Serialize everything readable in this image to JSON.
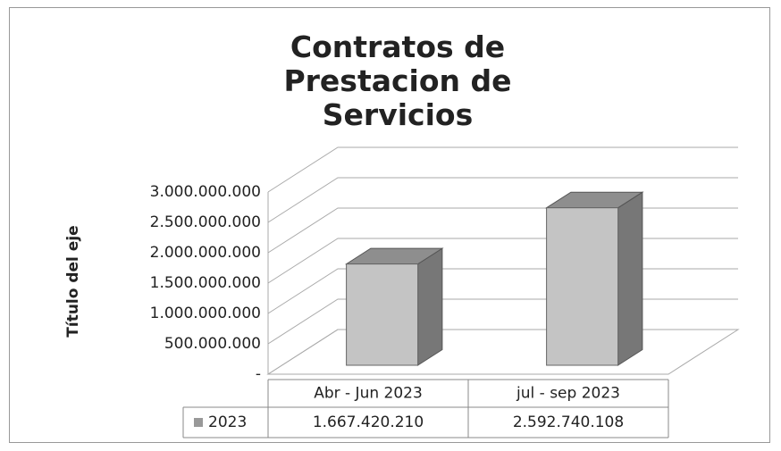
{
  "chart_data": {
    "type": "bar3d",
    "title": "Contratos de Prestacion de Servicios",
    "y_label": "Título del eje",
    "categories": [
      "Abr - Jun 2023",
      "jul - sep 2023"
    ],
    "series": [
      {
        "name": "2023",
        "color": "#c4c4c4",
        "values": [
          1667420210,
          2592740108
        ],
        "value_labels": [
          "1.667.420.210",
          "2.592.740.108"
        ]
      }
    ],
    "ylim": [
      0,
      3000000000
    ],
    "yticks": [
      {
        "value": 0,
        "label": "-"
      },
      {
        "value": 500000000,
        "label": "500.000.000"
      },
      {
        "value": 1000000000,
        "label": "1.000.000.000"
      },
      {
        "value": 1500000000,
        "label": "1.500.000.000"
      },
      {
        "value": 2000000000,
        "label": "2.000.000.000"
      },
      {
        "value": 2500000000,
        "label": "2.500.000.000"
      },
      {
        "value": 3000000000,
        "label": "3.000.000.000"
      }
    ],
    "grid": true,
    "data_table": true
  }
}
